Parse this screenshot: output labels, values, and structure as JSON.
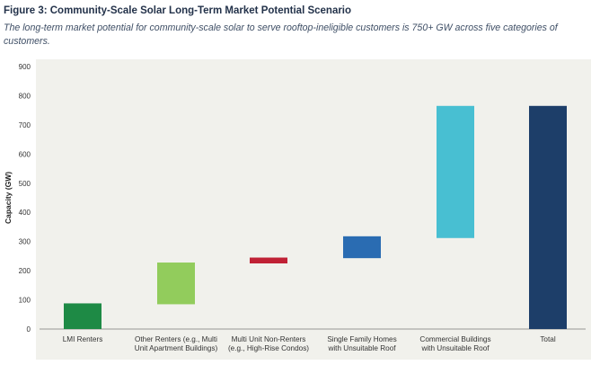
{
  "figure": {
    "title": "Figure 3: Community-Scale Solar Long-Term Market Potential Scenario",
    "subtitle": "The long-term market potential for community-scale solar to serve rooftop-ineligible customers is 750+ GW across five categories of customers."
  },
  "chart_data": {
    "type": "bar",
    "subtype": "waterfall",
    "ylabel": "Capacity (GW)",
    "xlabel": "",
    "ylim": [
      0,
      900
    ],
    "yticks": [
      0,
      100,
      200,
      300,
      400,
      500,
      600,
      700,
      800,
      900
    ],
    "grid": false,
    "background": "#f1f1ec",
    "categories": [
      {
        "label": [
          "LMI Renters"
        ],
        "start": 0,
        "end": 88,
        "color": "#1e8a45"
      },
      {
        "label": [
          "Other Renters (e.g., Multi",
          "Unit Apartment Buildings)"
        ],
        "start": 85,
        "end": 228,
        "color": "#92cc5c"
      },
      {
        "label": [
          "Multi Unit Non-Renters",
          "(e.g., High-Rise Condos)"
        ],
        "start": 225,
        "end": 245,
        "color": "#c02135"
      },
      {
        "label": [
          "Single Family Homes",
          "with Unsuitable Roof"
        ],
        "start": 243,
        "end": 318,
        "color": "#2a6cb2"
      },
      {
        "label": [
          "Commercial Buildings",
          "with Unsuitable Roof"
        ],
        "start": 312,
        "end": 765,
        "color": "#48bfd2"
      },
      {
        "label": [
          "Total"
        ],
        "start": 0,
        "end": 765,
        "color": "#1d3e69"
      }
    ]
  }
}
